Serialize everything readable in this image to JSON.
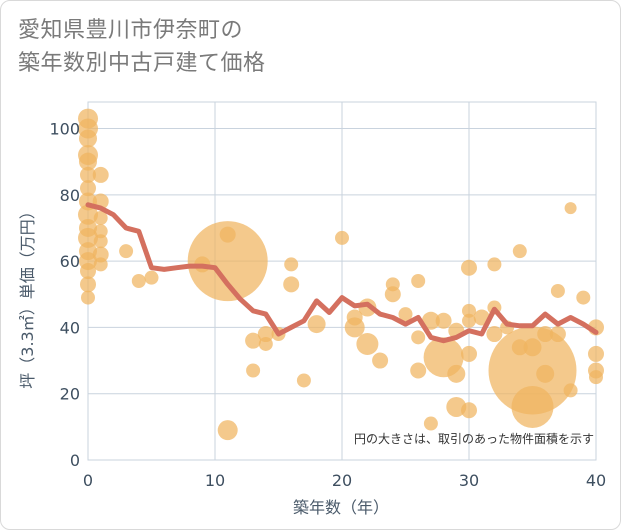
{
  "title_lines": [
    "愛知県豊川市伊奈町の",
    "築年数別中古戸建て価格"
  ],
  "colors": {
    "bubble": "#f0b460",
    "line": "#d4705f",
    "grid": "#c9d3de",
    "axis_text": "#3e4f60"
  },
  "chart_data": {
    "type": "scatter",
    "title": "愛知県豊川市伊奈町の築年数別中古戸建て価格",
    "xlabel": "築年数（年）",
    "ylabel": "坪（3.3㎡）単価（万円）",
    "xlim": [
      0,
      40
    ],
    "ylim": [
      0,
      108
    ],
    "xticks": [
      0,
      10,
      20,
      30,
      40
    ],
    "yticks": [
      0,
      20,
      40,
      60,
      80,
      100
    ],
    "note": "円の大きさは、取引のあった物件面積を示す",
    "trend_line": {
      "x": [
        0,
        1,
        2,
        3,
        4,
        5,
        6,
        7,
        8,
        9,
        10,
        11,
        12,
        13,
        14,
        15,
        16,
        17,
        18,
        19,
        20,
        21,
        22,
        23,
        24,
        25,
        26,
        27,
        28,
        29,
        30,
        31,
        32,
        33,
        34,
        35,
        36,
        37,
        38,
        39,
        40
      ],
      "y": [
        77,
        76,
        74,
        70,
        69,
        58,
        57.5,
        58,
        58.5,
        58.5,
        58,
        53,
        48.5,
        45,
        44,
        38,
        40,
        42,
        48,
        44.5,
        49,
        46.5,
        47,
        44,
        43,
        41,
        43,
        37,
        36,
        37,
        39,
        38,
        45.5,
        41,
        40.5,
        40.5,
        44,
        41,
        43,
        41,
        38.5
      ]
    },
    "bubbles": [
      {
        "x": 0,
        "y": 103,
        "s": 10
      },
      {
        "x": 0,
        "y": 100,
        "s": 10
      },
      {
        "x": 0,
        "y": 97,
        "s": 9
      },
      {
        "x": 0,
        "y": 92,
        "s": 10
      },
      {
        "x": 0,
        "y": 90,
        "s": 9
      },
      {
        "x": 0,
        "y": 86,
        "s": 8
      },
      {
        "x": 0,
        "y": 82,
        "s": 8
      },
      {
        "x": 0,
        "y": 78,
        "s": 9
      },
      {
        "x": 0,
        "y": 74,
        "s": 10
      },
      {
        "x": 0,
        "y": 70,
        "s": 9
      },
      {
        "x": 0,
        "y": 67,
        "s": 10
      },
      {
        "x": 0,
        "y": 63,
        "s": 9
      },
      {
        "x": 0,
        "y": 60,
        "s": 9
      },
      {
        "x": 0,
        "y": 57,
        "s": 8
      },
      {
        "x": 0,
        "y": 53,
        "s": 8
      },
      {
        "x": 0,
        "y": 49,
        "s": 7
      },
      {
        "x": 1,
        "y": 86,
        "s": 8
      },
      {
        "x": 1,
        "y": 78,
        "s": 8
      },
      {
        "x": 1,
        "y": 73,
        "s": 7
      },
      {
        "x": 1,
        "y": 66,
        "s": 7
      },
      {
        "x": 1,
        "y": 62,
        "s": 8
      },
      {
        "x": 1,
        "y": 59,
        "s": 7
      },
      {
        "x": 1,
        "y": 69,
        "s": 7
      },
      {
        "x": 3,
        "y": 63,
        "s": 7
      },
      {
        "x": 4,
        "y": 54,
        "s": 7
      },
      {
        "x": 5,
        "y": 55,
        "s": 7
      },
      {
        "x": 9,
        "y": 59,
        "s": 8
      },
      {
        "x": 11,
        "y": 60,
        "s": 40
      },
      {
        "x": 11,
        "y": 68,
        "s": 8
      },
      {
        "x": 11,
        "y": 9,
        "s": 10
      },
      {
        "x": 13,
        "y": 36,
        "s": 8
      },
      {
        "x": 13,
        "y": 27,
        "s": 7
      },
      {
        "x": 14,
        "y": 35,
        "s": 7
      },
      {
        "x": 14,
        "y": 38,
        "s": 8
      },
      {
        "x": 15,
        "y": 38,
        "s": 7
      },
      {
        "x": 16,
        "y": 59,
        "s": 7
      },
      {
        "x": 16,
        "y": 53,
        "s": 8
      },
      {
        "x": 17,
        "y": 24,
        "s": 7
      },
      {
        "x": 18,
        "y": 41,
        "s": 9
      },
      {
        "x": 20,
        "y": 67,
        "s": 7
      },
      {
        "x": 21,
        "y": 40,
        "s": 10
      },
      {
        "x": 21,
        "y": 43,
        "s": 8
      },
      {
        "x": 22,
        "y": 35,
        "s": 11
      },
      {
        "x": 22,
        "y": 46,
        "s": 9
      },
      {
        "x": 23,
        "y": 30,
        "s": 8
      },
      {
        "x": 24,
        "y": 50,
        "s": 8
      },
      {
        "x": 24,
        "y": 53,
        "s": 7
      },
      {
        "x": 25,
        "y": 44,
        "s": 7
      },
      {
        "x": 26,
        "y": 54,
        "s": 7
      },
      {
        "x": 26,
        "y": 37,
        "s": 7
      },
      {
        "x": 26,
        "y": 27,
        "s": 8
      },
      {
        "x": 27,
        "y": 42,
        "s": 9
      },
      {
        "x": 27,
        "y": 11,
        "s": 7
      },
      {
        "x": 28,
        "y": 42,
        "s": 8
      },
      {
        "x": 28,
        "y": 31,
        "s": 20
      },
      {
        "x": 29,
        "y": 39,
        "s": 8
      },
      {
        "x": 29,
        "y": 26,
        "s": 9
      },
      {
        "x": 29,
        "y": 16,
        "s": 10
      },
      {
        "x": 30,
        "y": 58,
        "s": 8
      },
      {
        "x": 30,
        "y": 45,
        "s": 7
      },
      {
        "x": 30,
        "y": 42,
        "s": 7
      },
      {
        "x": 30,
        "y": 32,
        "s": 8
      },
      {
        "x": 30,
        "y": 15,
        "s": 8
      },
      {
        "x": 31,
        "y": 43,
        "s": 8
      },
      {
        "x": 32,
        "y": 59,
        "s": 7
      },
      {
        "x": 32,
        "y": 46,
        "s": 7
      },
      {
        "x": 32,
        "y": 38,
        "s": 8
      },
      {
        "x": 33,
        "y": 40,
        "s": 7
      },
      {
        "x": 34,
        "y": 63,
        "s": 7
      },
      {
        "x": 34,
        "y": 34,
        "s": 8
      },
      {
        "x": 35,
        "y": 27,
        "s": 44
      },
      {
        "x": 35,
        "y": 16,
        "s": 21
      },
      {
        "x": 35,
        "y": 34,
        "s": 9
      },
      {
        "x": 36,
        "y": 26,
        "s": 9
      },
      {
        "x": 36,
        "y": 38,
        "s": 8
      },
      {
        "x": 37,
        "y": 51,
        "s": 7
      },
      {
        "x": 37,
        "y": 38,
        "s": 8
      },
      {
        "x": 38,
        "y": 76,
        "s": 6
      },
      {
        "x": 38,
        "y": 21,
        "s": 7
      },
      {
        "x": 39,
        "y": 49,
        "s": 7
      },
      {
        "x": 40,
        "y": 40,
        "s": 8
      },
      {
        "x": 40,
        "y": 32,
        "s": 8
      },
      {
        "x": 40,
        "y": 27,
        "s": 8
      },
      {
        "x": 40,
        "y": 25,
        "s": 7
      }
    ]
  }
}
